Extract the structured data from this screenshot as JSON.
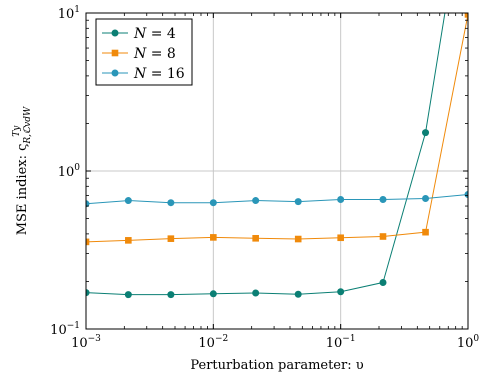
{
  "chart_data": {
    "type": "line",
    "xscale": "log",
    "yscale": "log",
    "xlim": [
      0.001,
      1
    ],
    "ylim": [
      0.1,
      10
    ],
    "grid": true,
    "legend_position": "top-left",
    "xlabel": "Perturbation parameter: υ",
    "ylabel": "MSE indiex: ς",
    "ylabel_superscript": "Ty",
    "ylabel_subscript": "R,ℂvdW",
    "x_ticks": [
      {
        "value": 0.001,
        "base": "10",
        "exp": "−3"
      },
      {
        "value": 0.01,
        "base": "10",
        "exp": "−2"
      },
      {
        "value": 0.1,
        "base": "10",
        "exp": "−1"
      },
      {
        "value": 1,
        "base": "10",
        "exp": "0"
      }
    ],
    "y_ticks": [
      {
        "value": 0.1,
        "base": "10",
        "exp": "−1"
      },
      {
        "value": 1,
        "base": "10",
        "exp": "0"
      },
      {
        "value": 10,
        "base": "10",
        "exp": "1"
      }
    ],
    "x": [
      0.001,
      0.00215,
      0.00464,
      0.01,
      0.0215,
      0.0464,
      0.1,
      0.215,
      0.464,
      1.0
    ],
    "series": [
      {
        "name_var": "N",
        "name_eq": " = 4",
        "color": "#0b7f74",
        "marker": "circle",
        "values": [
          0.17,
          0.165,
          0.165,
          0.167,
          0.169,
          0.166,
          0.172,
          0.197,
          1.75,
          80
        ]
      },
      {
        "name_var": "N",
        "name_eq": " = 8",
        "color": "#f08a0b",
        "marker": "square",
        "values": [
          0.356,
          0.364,
          0.373,
          0.38,
          0.375,
          0.371,
          0.378,
          0.385,
          0.41,
          9.8
        ]
      },
      {
        "name_var": "N",
        "name_eq": " = 16",
        "color": "#2a96b8",
        "marker": "circle",
        "values": [
          0.62,
          0.65,
          0.63,
          0.63,
          0.65,
          0.64,
          0.66,
          0.66,
          0.67,
          0.71
        ]
      }
    ]
  }
}
